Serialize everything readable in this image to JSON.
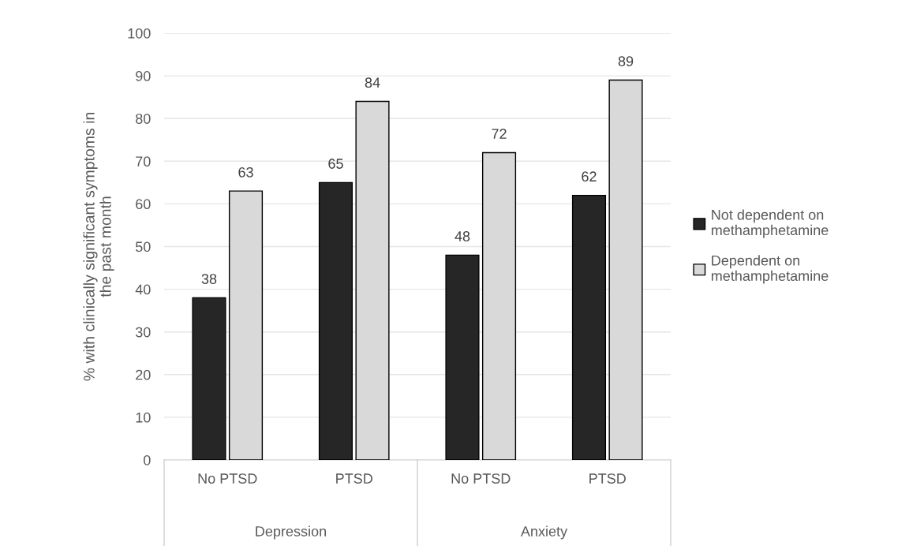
{
  "chart_data": {
    "type": "bar",
    "ylabel": "% with clinically significant symptoms in\nthe past month",
    "categories": [
      "No PTSD",
      "PTSD",
      "No PTSD",
      "PTSD"
    ],
    "series": [
      {
        "name": "Not dependent on\nmethamphetamine",
        "color": "#262626",
        "values": [
          38,
          65,
          48,
          62
        ]
      },
      {
        "name": "Dependent on\nmethamphetamine",
        "color": "#d9d9d9",
        "values": [
          63,
          84,
          72,
          89
        ]
      }
    ],
    "annotations": [
      "Depression",
      "Anxiety"
    ],
    "ylim": [
      0,
      100
    ],
    "yticks": [
      0,
      10,
      20,
      30,
      40,
      50,
      60,
      70,
      80,
      90,
      100
    ],
    "grid": "y",
    "legend": "right",
    "data_labels": true
  }
}
